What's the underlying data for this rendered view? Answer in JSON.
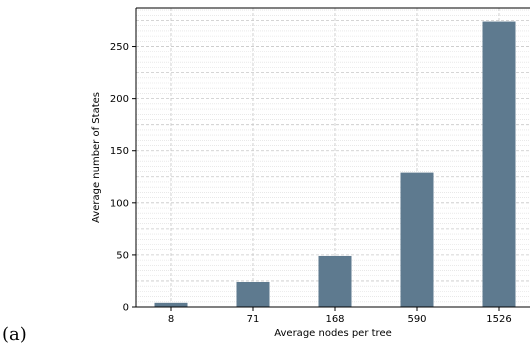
{
  "panel_label": "(a)",
  "chart_data": {
    "type": "bar",
    "categories": [
      "8",
      "71",
      "168",
      "590",
      "1526"
    ],
    "values": [
      4,
      24,
      49,
      129,
      274
    ],
    "title": "",
    "xlabel": "Average nodes per tree",
    "ylabel": "Average number of States",
    "ylim": [
      0,
      287
    ],
    "yticks": [
      0,
      50,
      100,
      150,
      200,
      250
    ],
    "grid": true,
    "bar_color": "#5e7a8f"
  }
}
